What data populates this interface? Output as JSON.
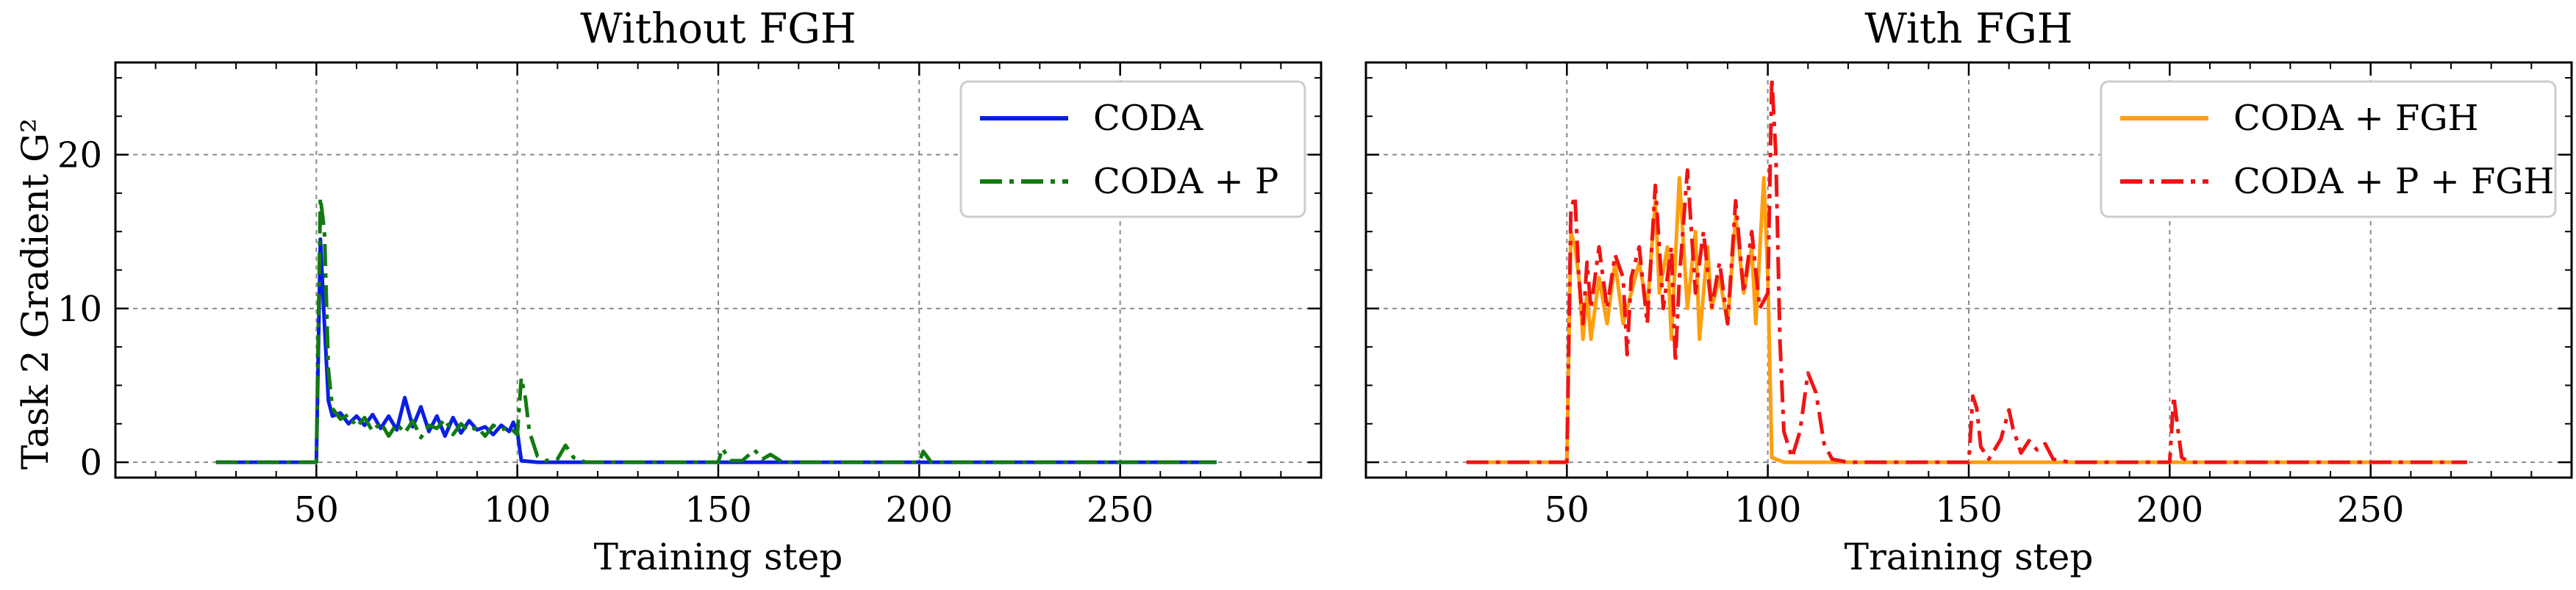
{
  "figure": {
    "ylabel": "Task 2 Gradient G²"
  },
  "chart_data": [
    {
      "type": "line",
      "title": "Without FGH",
      "xlabel": "Training step",
      "ylabel": "Task 2 Gradient G²",
      "xlim": [
        0,
        300
      ],
      "ylim": [
        -1,
        26
      ],
      "xticks": [
        50,
        100,
        150,
        200,
        250
      ],
      "yticks": [
        0,
        10,
        20
      ],
      "grid": true,
      "legend": "top-right",
      "series": [
        {
          "name": "CODA",
          "color": "#0a1ee6",
          "style": "solid",
          "points": [
            [
              25,
              0
            ],
            [
              50,
              0
            ],
            [
              51,
              14.5
            ],
            [
              52,
              9
            ],
            [
              53,
              4
            ],
            [
              54,
              3
            ],
            [
              56,
              3.2
            ],
            [
              58,
              2.5
            ],
            [
              60,
              3.0
            ],
            [
              62,
              2.4
            ],
            [
              64,
              3.1
            ],
            [
              66,
              2.2
            ],
            [
              68,
              3.0
            ],
            [
              70,
              2.1
            ],
            [
              72,
              4.2
            ],
            [
              74,
              2.3
            ],
            [
              76,
              3.6
            ],
            [
              78,
              2.0
            ],
            [
              80,
              3.0
            ],
            [
              82,
              1.7
            ],
            [
              84,
              2.9
            ],
            [
              86,
              1.9
            ],
            [
              88,
              2.7
            ],
            [
              90,
              2.1
            ],
            [
              92,
              2.3
            ],
            [
              94,
              1.8
            ],
            [
              96,
              2.4
            ],
            [
              98,
              2.0
            ],
            [
              99,
              2.6
            ],
            [
              100,
              2.0
            ],
            [
              101,
              0.1
            ],
            [
              105,
              0
            ],
            [
              150,
              0
            ],
            [
              200,
              0
            ],
            [
              274,
              0
            ]
          ]
        },
        {
          "name": "CODA + P",
          "color": "#117a11",
          "style": "dashdot",
          "points": [
            [
              25,
              0
            ],
            [
              50,
              0
            ],
            [
              51,
              17.2
            ],
            [
              52,
              15
            ],
            [
              53,
              6
            ],
            [
              54,
              3.5
            ],
            [
              56,
              2.8
            ],
            [
              58,
              3.1
            ],
            [
              60,
              2.3
            ],
            [
              62,
              2.9
            ],
            [
              64,
              2.0
            ],
            [
              66,
              2.6
            ],
            [
              68,
              1.7
            ],
            [
              70,
              2.5
            ],
            [
              72,
              1.9
            ],
            [
              74,
              2.7
            ],
            [
              76,
              1.6
            ],
            [
              78,
              2.4
            ],
            [
              80,
              2.2
            ],
            [
              82,
              2.8
            ],
            [
              84,
              1.8
            ],
            [
              86,
              2.5
            ],
            [
              88,
              2.0
            ],
            [
              90,
              2.3
            ],
            [
              92,
              1.7
            ],
            [
              94,
              2.4
            ],
            [
              96,
              2.1
            ],
            [
              98,
              2.3
            ],
            [
              100,
              1.8
            ],
            [
              101,
              5.5
            ],
            [
              102,
              4.2
            ],
            [
              103,
              2.0
            ],
            [
              105,
              0.4
            ],
            [
              107,
              0.1
            ],
            [
              110,
              0.2
            ],
            [
              112,
              1.1
            ],
            [
              114,
              0.3
            ],
            [
              117,
              0
            ],
            [
              150,
              0
            ],
            [
              151,
              0.9
            ],
            [
              153,
              0.1
            ],
            [
              156,
              0.1
            ],
            [
              159,
              0.8
            ],
            [
              161,
              0.2
            ],
            [
              163,
              0.5
            ],
            [
              166,
              0
            ],
            [
              200,
              0
            ],
            [
              201,
              0.7
            ],
            [
              203,
              0
            ],
            [
              274,
              0
            ]
          ]
        }
      ]
    },
    {
      "type": "line",
      "title": "With FGH",
      "xlabel": "Training step",
      "xlim": [
        0,
        300
      ],
      "ylim": [
        -1,
        26
      ],
      "xticks": [
        50,
        100,
        150,
        200,
        250
      ],
      "yticks": [
        0,
        10,
        20
      ],
      "grid": true,
      "legend": "top-right",
      "series": [
        {
          "name": "CODA + FGH",
          "color": "#ff9f0f",
          "style": "solid",
          "points": [
            [
              25,
              0
            ],
            [
              50,
              0
            ],
            [
              51,
              15
            ],
            [
              52,
              14
            ],
            [
              53,
              12
            ],
            [
              54,
              8
            ],
            [
              55,
              11
            ],
            [
              56,
              8
            ],
            [
              58,
              12
            ],
            [
              60,
              9
            ],
            [
              62,
              13
            ],
            [
              64,
              9
            ],
            [
              66,
              11
            ],
            [
              68,
              13
            ],
            [
              70,
              10
            ],
            [
              72,
              17
            ],
            [
              73,
              11
            ],
            [
              75,
              14
            ],
            [
              76,
              8
            ],
            [
              78,
              18.5
            ],
            [
              80,
              10
            ],
            [
              82,
              15
            ],
            [
              83,
              8
            ],
            [
              85,
              14
            ],
            [
              86,
              10
            ],
            [
              88,
              12
            ],
            [
              90,
              9
            ],
            [
              92,
              16
            ],
            [
              94,
              11
            ],
            [
              96,
              14
            ],
            [
              97,
              9
            ],
            [
              99,
              18.5
            ],
            [
              100,
              12
            ],
            [
              101,
              0.3
            ],
            [
              104,
              0
            ],
            [
              150,
              0
            ],
            [
              200,
              0
            ],
            [
              274,
              0
            ]
          ]
        },
        {
          "name": "CODA + P + FGH",
          "color": "#f01414",
          "style": "dashdot",
          "points": [
            [
              25,
              0
            ],
            [
              50,
              0
            ],
            [
              51,
              16.5
            ],
            [
              52,
              17.3
            ],
            [
              53,
              12
            ],
            [
              54,
              9
            ],
            [
              55,
              13
            ],
            [
              56,
              10
            ],
            [
              58,
              14
            ],
            [
              60,
              10
            ],
            [
              62,
              13.5
            ],
            [
              64,
              12
            ],
            [
              65,
              7
            ],
            [
              66,
              12
            ],
            [
              68,
              14
            ],
            [
              70,
              9
            ],
            [
              72,
              18
            ],
            [
              74,
              10
            ],
            [
              76,
              14
            ],
            [
              77,
              6.5
            ],
            [
              78,
              12
            ],
            [
              80,
              19
            ],
            [
              82,
              11
            ],
            [
              84,
              15
            ],
            [
              86,
              10
            ],
            [
              88,
              13
            ],
            [
              90,
              9
            ],
            [
              92,
              17
            ],
            [
              94,
              11
            ],
            [
              96,
              15
            ],
            [
              98,
              10
            ],
            [
              100,
              11
            ],
            [
              101,
              25
            ],
            [
              102,
              20
            ],
            [
              103,
              8
            ],
            [
              104,
              2
            ],
            [
              106,
              0.3
            ],
            [
              108,
              2
            ],
            [
              110,
              5.8
            ],
            [
              112,
              4.5
            ],
            [
              114,
              1.2
            ],
            [
              116,
              0.2
            ],
            [
              120,
              0
            ],
            [
              150,
              0
            ],
            [
              151,
              4.3
            ],
            [
              152,
              3.5
            ],
            [
              153,
              1.0
            ],
            [
              155,
              0.2
            ],
            [
              158,
              1.5
            ],
            [
              160,
              3.4
            ],
            [
              161,
              2.2
            ],
            [
              163,
              0.6
            ],
            [
              165,
              1.4
            ],
            [
              167,
              0.8
            ],
            [
              169,
              1.2
            ],
            [
              171,
              0.2
            ],
            [
              175,
              0
            ],
            [
              200,
              0
            ],
            [
              201,
              4.3
            ],
            [
              202,
              2.2
            ],
            [
              203,
              0.3
            ],
            [
              205,
              0
            ],
            [
              274,
              0
            ]
          ]
        }
      ]
    }
  ]
}
